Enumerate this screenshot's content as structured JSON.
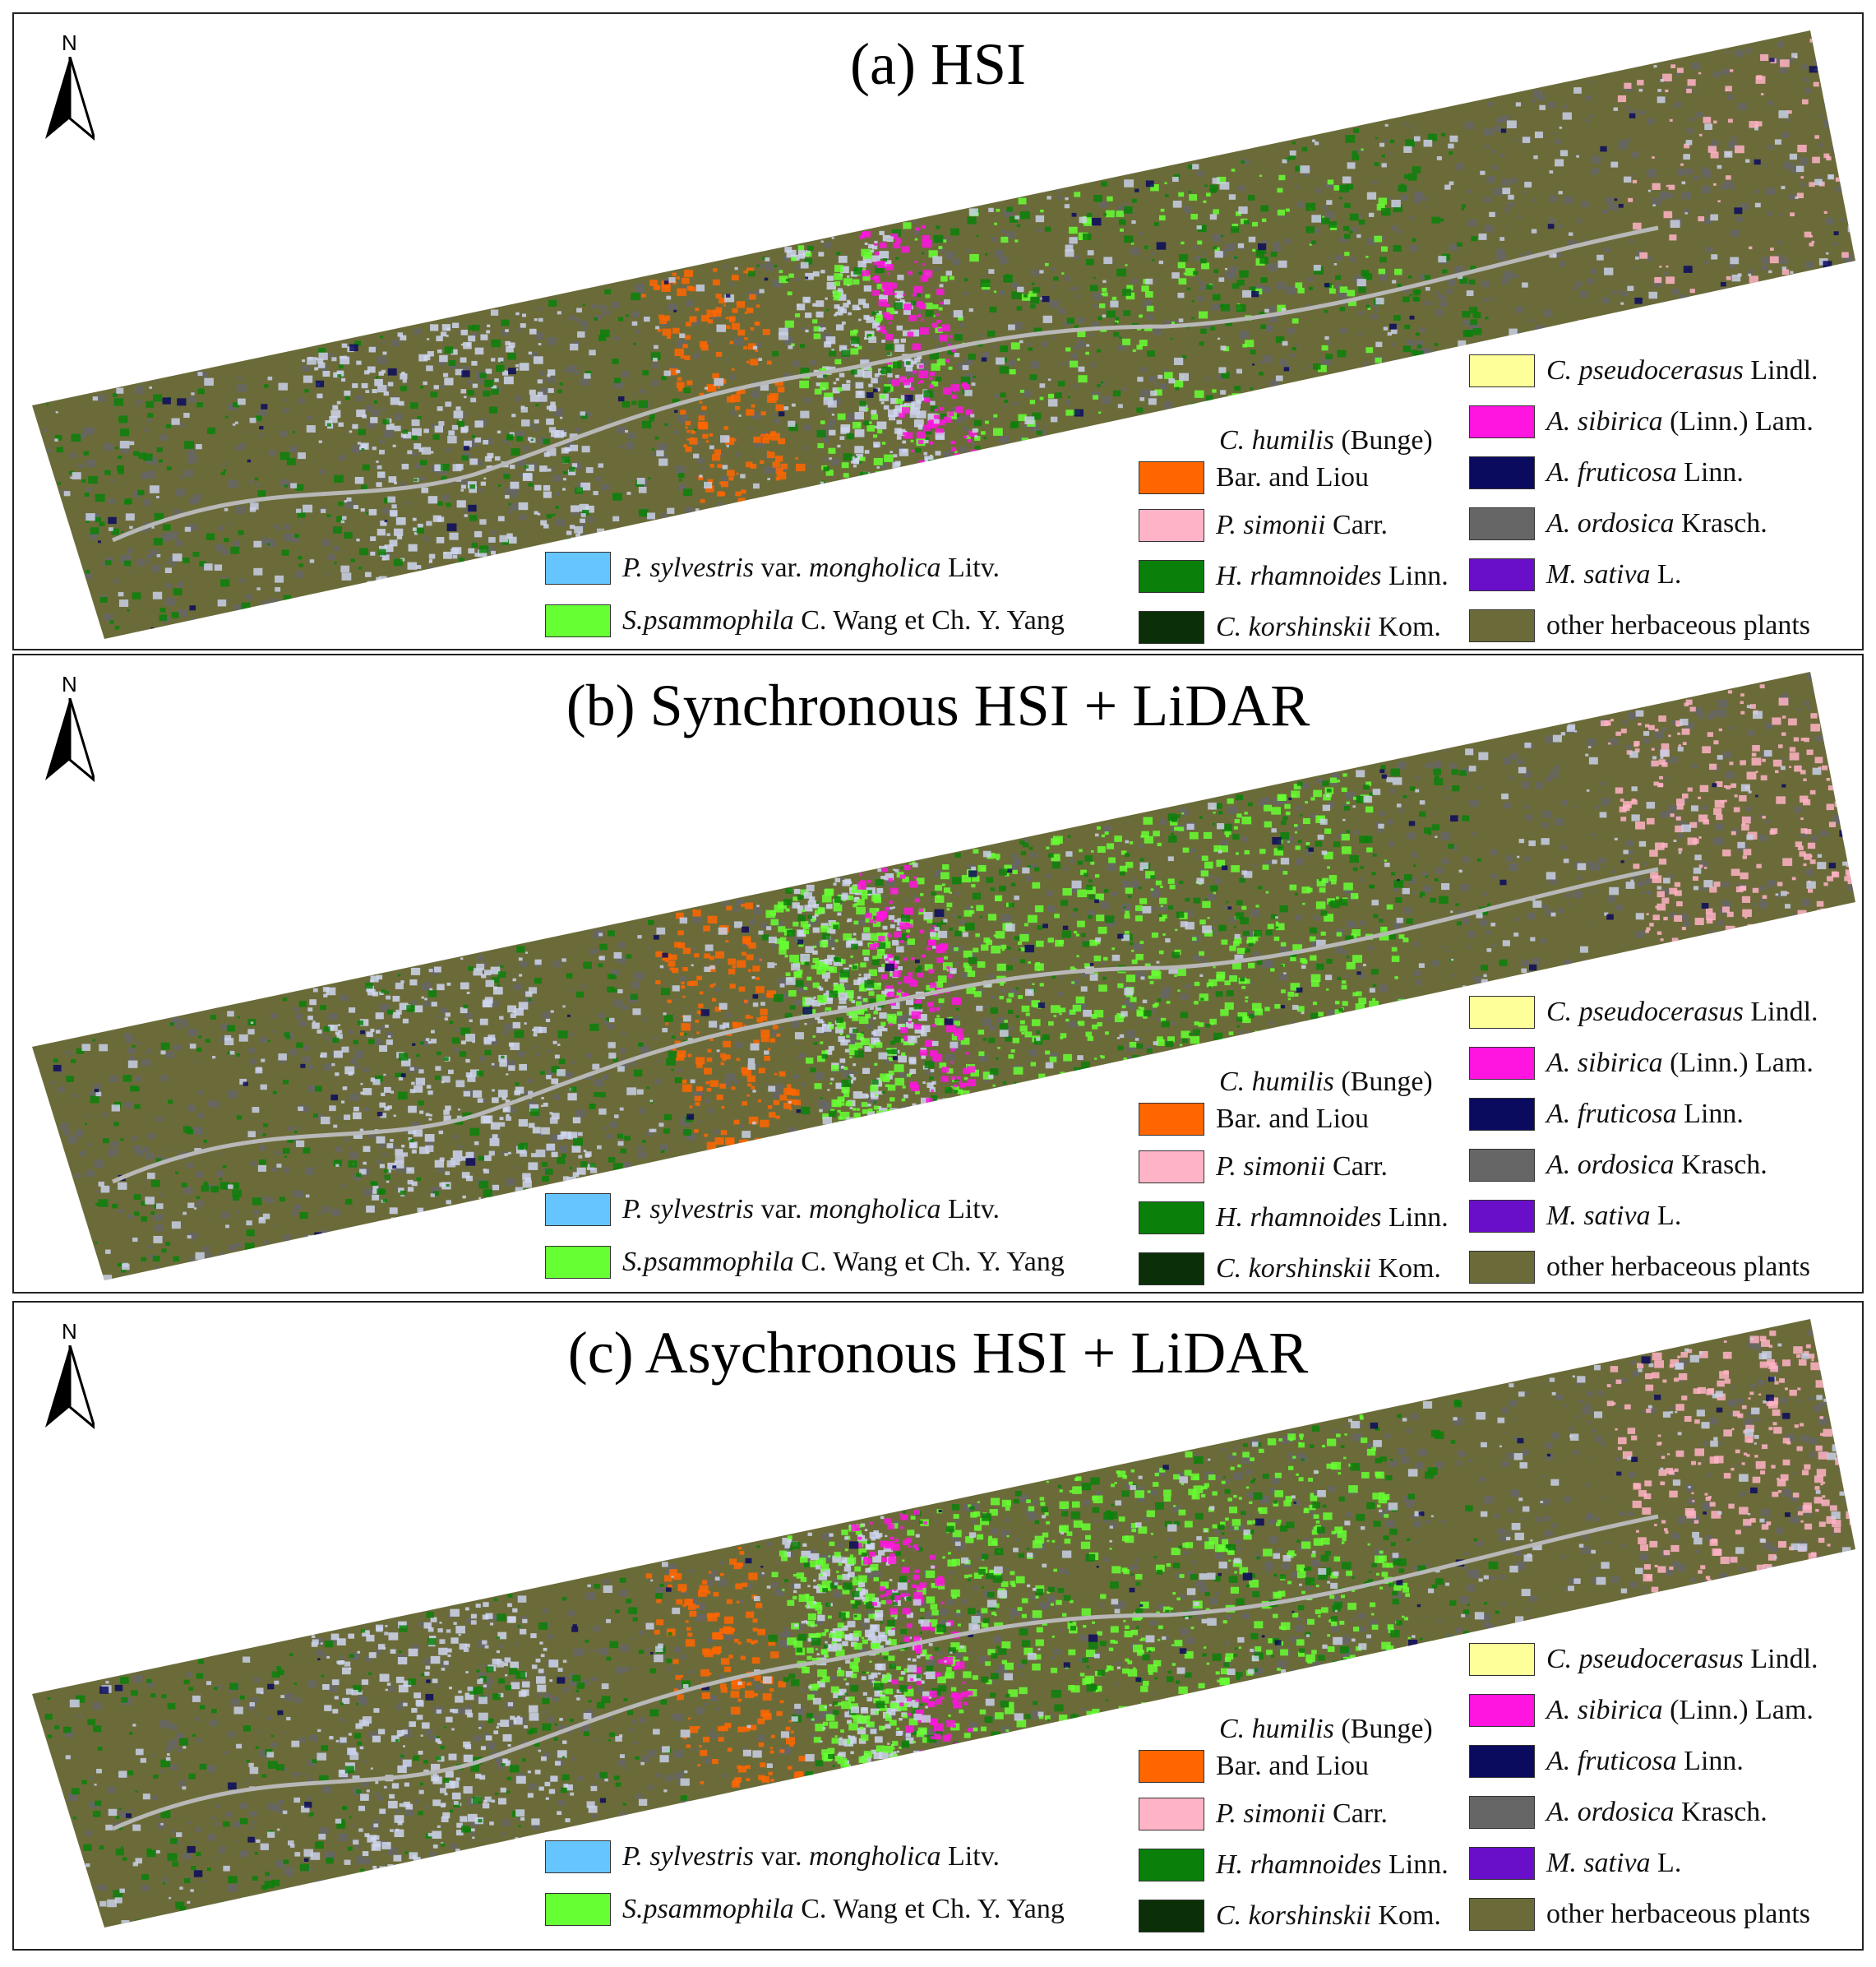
{
  "panels": [
    {
      "title": "(a) HSI",
      "north": "N",
      "speckle_seed": 11
    },
    {
      "title": "(b) Synchronous HSI + LiDAR",
      "north": "N",
      "speckle_seed": 23
    },
    {
      "title": "(c) Asychronous HSI + LiDAR",
      "north": "N",
      "speckle_seed": 37
    }
  ],
  "legend": {
    "p_sylvestris": {
      "color": "#66c5ff",
      "genus": "P. sylvestris",
      "mid": " var. ",
      "variety": "mongholica",
      "author": " Litv."
    },
    "s_psammophila": {
      "color": "#66ff33",
      "genus": "S.psammophila",
      "author": "  C. Wang et Ch. Y. Yang"
    },
    "c_humilis": {
      "color": "#ff6600",
      "genus": "C. humilis",
      "author1": "  (Bunge)",
      "author2": "Bar. and Liou"
    },
    "p_simonii": {
      "color": "#ffb3c6",
      "genus": "P. simonii",
      "author": "  Carr."
    },
    "h_rhamnoides": {
      "color": "#0a800a",
      "genus": "H. rhamnoides",
      "author": " Linn."
    },
    "c_korshinskii": {
      "color": "#0b3008",
      "genus": "C. korshinskii",
      "author": " Kom."
    },
    "c_pseudocerasus": {
      "color": "#ffff99",
      "genus": "C. pseudocerasus",
      "author": " Lindl."
    },
    "a_sibirica": {
      "color": "#ff14e0",
      "genus": "A. sibirica",
      "author": " (Linn.) Lam."
    },
    "a_fruticosa": {
      "color": "#0a0a5e",
      "genus": "A. fruticosa",
      "author": " Linn."
    },
    "a_ordosica": {
      "color": "#666666",
      "genus": "A. ordosica",
      "author": " Krasch."
    },
    "m_sativa": {
      "color": "#6a0fc9",
      "genus": "M. sativa",
      "author": "  L."
    },
    "other": {
      "color": "#6b6b3a",
      "label": "other herbaceous plants"
    }
  }
}
